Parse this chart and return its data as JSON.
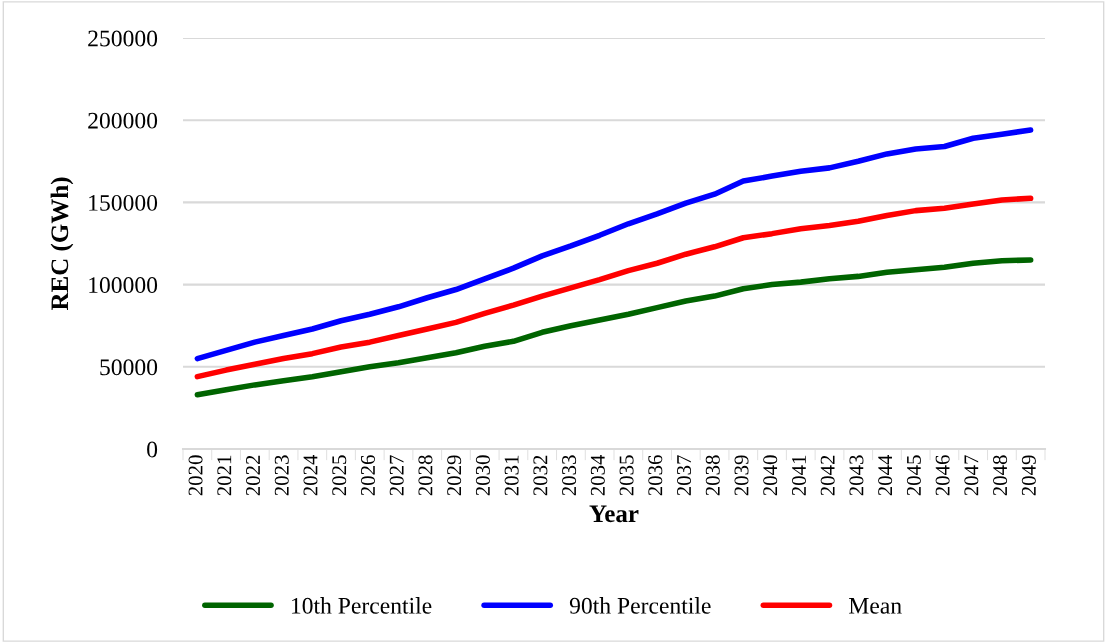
{
  "chart_data": {
    "type": "line",
    "xlabel": "Year",
    "ylabel": "REC (GWh)",
    "categories": [
      "2020",
      "2021",
      "2022",
      "2023",
      "2024",
      "2025",
      "2026",
      "2027",
      "2028",
      "2029",
      "2030",
      "2031",
      "2032",
      "2033",
      "2034",
      "2035",
      "2036",
      "2037",
      "2038",
      "2039",
      "2040",
      "2041",
      "2042",
      "2043",
      "2044",
      "2045",
      "2046",
      "2047",
      "2048",
      "2049"
    ],
    "series": [
      {
        "name": "10th Percentile",
        "color": "#006400",
        "values": [
          33000,
          36000,
          39000,
          41500,
          44000,
          47000,
          50000,
          52500,
          55500,
          58500,
          62500,
          65500,
          71000,
          75000,
          78500,
          82000,
          86000,
          90000,
          93000,
          97500,
          100000,
          101500,
          103500,
          105000,
          107500,
          109000,
          110500,
          113000,
          114500,
          115000
        ]
      },
      {
        "name": "90th Percentile",
        "color": "#0000ff",
        "values": [
          55000,
          60000,
          65000,
          69000,
          73000,
          78000,
          82000,
          86500,
          92000,
          97000,
          103500,
          110000,
          117500,
          123500,
          130000,
          137000,
          143000,
          149500,
          155000,
          163000,
          166000,
          169000,
          171000,
          175000,
          179500,
          182500,
          184000,
          189000,
          191500,
          194000
        ]
      },
      {
        "name": "Mean",
        "color": "#ff0000",
        "values": [
          44000,
          48000,
          51500,
          55000,
          58000,
          62000,
          65000,
          69000,
          73000,
          77000,
          82500,
          87500,
          93000,
          98000,
          103000,
          108500,
          113000,
          118500,
          123000,
          128500,
          131000,
          134000,
          136000,
          138500,
          142000,
          145000,
          146500,
          149000,
          151500,
          152500
        ]
      }
    ],
    "ylim": [
      0,
      250000
    ],
    "yticks": [
      0,
      50000,
      100000,
      150000,
      200000,
      250000
    ],
    "grid": "y",
    "legend": "bottom",
    "marker": "none",
    "line_style": "solid"
  }
}
